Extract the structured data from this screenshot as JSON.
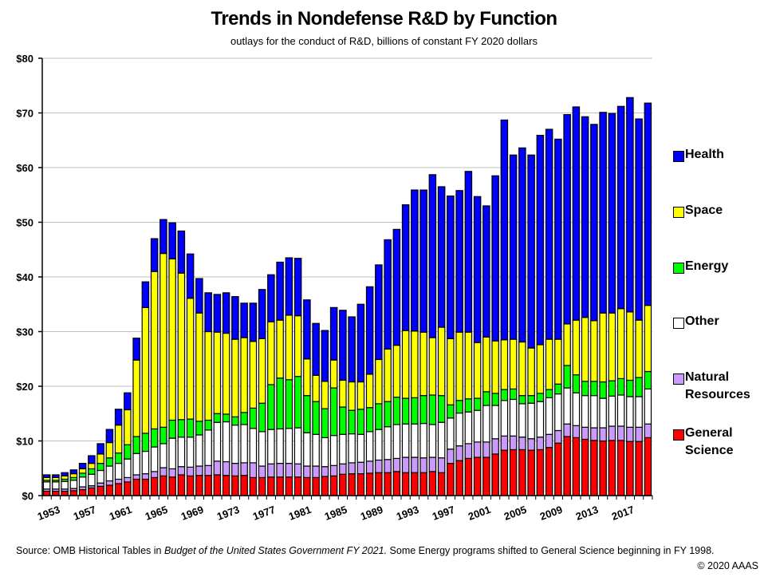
{
  "chart_data": {
    "type": "bar",
    "stacked": true,
    "title": "Trends in Nondefense R&D by Function",
    "subtitle": "outlays for the conduct of R&D, billions of constant FY 2020  dollars",
    "xlabel": "",
    "ylabel": "",
    "ylim": [
      0,
      80
    ],
    "yticks": [
      0,
      10,
      20,
      30,
      40,
      50,
      60,
      70,
      80
    ],
    "ytick_labels": [
      "$0",
      "$10",
      "$20",
      "$30",
      "$40",
      "$50",
      "$60",
      "$70",
      "$80"
    ],
    "xtick_labels": [
      "1953",
      "1957",
      "1961",
      "1965",
      "1969",
      "1973",
      "1977",
      "1981",
      "1985",
      "1989",
      "1993",
      "1997",
      "2001",
      "2005",
      "2009",
      "2013",
      "2017"
    ],
    "grid": true,
    "legend_position": "right",
    "categories": [
      1953,
      1954,
      1955,
      1956,
      1957,
      1958,
      1959,
      1960,
      1961,
      1962,
      1963,
      1964,
      1965,
      1966,
      1967,
      1968,
      1969,
      1970,
      1971,
      1972,
      1973,
      1974,
      1975,
      1976,
      1977,
      1978,
      1979,
      1980,
      1981,
      1982,
      1983,
      1984,
      1985,
      1986,
      1987,
      1988,
      1989,
      1990,
      1991,
      1992,
      1993,
      1994,
      1995,
      1996,
      1997,
      1998,
      1999,
      2000,
      2001,
      2002,
      2003,
      2004,
      2005,
      2006,
      2007,
      2008,
      2009,
      2010,
      2011,
      2012,
      2013,
      2014,
      2015,
      2016,
      2017,
      2018,
      2019,
      2020
    ],
    "series": [
      {
        "name": "General Science",
        "legend": [
          "General",
          "Science"
        ],
        "color": "#FF0000",
        "values": [
          0.8,
          0.8,
          0.8,
          0.9,
          1.1,
          1.4,
          1.7,
          1.9,
          2.2,
          2.5,
          3.0,
          3.0,
          3.3,
          3.6,
          3.4,
          3.8,
          3.6,
          3.7,
          3.7,
          3.8,
          3.7,
          3.6,
          3.7,
          3.3,
          3.3,
          3.4,
          3.4,
          3.4,
          3.4,
          3.3,
          3.3,
          3.5,
          3.6,
          3.9,
          4.0,
          4.0,
          4.1,
          4.2,
          4.2,
          4.4,
          4.2,
          4.2,
          4.2,
          4.4,
          4.2,
          5.9,
          6.4,
          6.8,
          7.0,
          7.0,
          7.6,
          8.3,
          8.4,
          8.4,
          8.3,
          8.4,
          8.8,
          9.6,
          10.8,
          10.6,
          10.3,
          10.1,
          10.0,
          10.1,
          10.1,
          9.9,
          9.9,
          10.6
        ]
      },
      {
        "name": "Natural Resources",
        "legend": [
          "Natural",
          "Resources"
        ],
        "color": "#CC99FF",
        "values": [
          0.4,
          0.4,
          0.4,
          0.4,
          0.5,
          0.4,
          0.6,
          0.8,
          0.8,
          0.8,
          0.8,
          1.0,
          1.1,
          1.5,
          1.5,
          1.5,
          1.6,
          1.7,
          1.8,
          2.5,
          2.5,
          2.3,
          2.3,
          2.7,
          2.1,
          2.4,
          2.5,
          2.5,
          2.4,
          2.1,
          2.1,
          1.8,
          1.9,
          1.9,
          2.0,
          2.1,
          2.2,
          2.3,
          2.4,
          2.4,
          2.8,
          2.8,
          2.7,
          2.6,
          2.7,
          2.6,
          2.7,
          2.7,
          2.8,
          2.8,
          2.8,
          2.6,
          2.5,
          2.3,
          2.1,
          2.3,
          2.4,
          2.3,
          2.3,
          2.2,
          2.2,
          2.3,
          2.4,
          2.6,
          2.6,
          2.6,
          2.6,
          2.5
        ]
      },
      {
        "name": "Other",
        "legend": [
          "Other"
        ],
        "color": "#FFFFFF",
        "values": [
          1.3,
          1.3,
          1.4,
          1.5,
          1.8,
          2.1,
          2.3,
          2.7,
          2.9,
          3.4,
          3.9,
          4.1,
          4.5,
          4.4,
          5.6,
          5.4,
          5.5,
          5.7,
          6.5,
          7.1,
          7.3,
          7.0,
          7.0,
          6.3,
          6.3,
          6.3,
          6.3,
          6.4,
          6.6,
          6.1,
          5.8,
          5.3,
          5.5,
          5.4,
          5.3,
          5.1,
          5.4,
          5.6,
          6.0,
          6.2,
          6.1,
          6.1,
          6.3,
          6.0,
          6.5,
          5.7,
          6.0,
          5.8,
          5.8,
          6.7,
          6.1,
          6.5,
          6.7,
          6.1,
          6.5,
          6.5,
          6.7,
          6.7,
          6.6,
          6.0,
          5.8,
          5.9,
          5.4,
          5.5,
          5.7,
          5.6,
          5.6,
          6.4
        ]
      },
      {
        "name": "Energy",
        "legend": [
          "Energy"
        ],
        "color": "#00FF00",
        "values": [
          0.3,
          0.3,
          0.4,
          0.5,
          0.7,
          1.0,
          1.3,
          1.5,
          1.9,
          2.6,
          3.1,
          3.3,
          3.3,
          3.0,
          3.3,
          3.2,
          3.3,
          2.5,
          1.8,
          1.6,
          1.4,
          1.5,
          2.2,
          3.7,
          5.2,
          8.2,
          9.3,
          8.9,
          9.4,
          6.8,
          6.0,
          5.3,
          8.7,
          5.0,
          4.3,
          4.6,
          4.4,
          4.7,
          4.6,
          5.0,
          4.7,
          4.8,
          5.1,
          5.4,
          4.9,
          2.4,
          2.3,
          2.4,
          2.2,
          2.5,
          2.2,
          2.0,
          1.9,
          1.5,
          1.4,
          1.5,
          1.5,
          1.8,
          4.1,
          3.3,
          2.6,
          2.6,
          3.0,
          2.8,
          3.0,
          3.0,
          3.5,
          3.2
        ]
      },
      {
        "name": "Space",
        "legend": [
          "Space"
        ],
        "color": "#FFFF00",
        "values": [
          0.5,
          0.5,
          0.6,
          0.7,
          0.8,
          1.0,
          1.7,
          2.8,
          5.1,
          6.4,
          14.0,
          23.0,
          28.8,
          31.8,
          29.5,
          26.8,
          22.1,
          19.8,
          16.2,
          14.9,
          14.8,
          14.2,
          13.7,
          12.2,
          11.8,
          11.5,
          10.6,
          11.8,
          11.1,
          6.7,
          4.8,
          5.0,
          5.1,
          4.9,
          5.2,
          5.0,
          6.1,
          8.1,
          9.6,
          9.5,
          12.4,
          12.2,
          11.6,
          10.5,
          12.5,
          12.1,
          12.5,
          12.2,
          10.2,
          10.0,
          9.6,
          9.1,
          9.1,
          9.8,
          8.7,
          8.9,
          9.2,
          8.2,
          7.6,
          10.0,
          11.7,
          11.1,
          12.6,
          12.4,
          12.8,
          12.5,
          10.5,
          12.1
        ]
      },
      {
        "name": "Health",
        "legend": [
          "Health"
        ],
        "color": "#0000FF",
        "values": [
          0.5,
          0.5,
          0.6,
          0.7,
          1.0,
          1.4,
          1.9,
          2.4,
          2.9,
          3.1,
          4.0,
          4.7,
          6.0,
          6.2,
          6.6,
          7.7,
          8.1,
          6.3,
          7.1,
          6.9,
          7.4,
          7.8,
          6.3,
          7.0,
          9.0,
          8.6,
          10.6,
          10.5,
          10.5,
          10.8,
          9.5,
          9.3,
          9.6,
          12.8,
          11.9,
          14.2,
          16.0,
          17.3,
          20.0,
          21.2,
          23.0,
          25.8,
          26.0,
          29.8,
          25.7,
          26.1,
          25.9,
          29.4,
          26.7,
          24.0,
          30.2,
          40.2,
          33.7,
          35.5,
          35.3,
          38.3,
          38.4,
          36.6,
          38.3,
          39.0,
          36.7,
          35.9,
          36.7,
          36.5,
          37.0,
          39.2,
          36.8,
          37.0
        ]
      }
    ]
  },
  "source_note": {
    "prefix": "Source: OMB Historical Tables in ",
    "italic": "Budget of the United States Government FY 2021.",
    "suffix": "  Some Energy programs shifted to General Science beginning in FY 1998."
  },
  "copyright": "© 2020 AAAS"
}
